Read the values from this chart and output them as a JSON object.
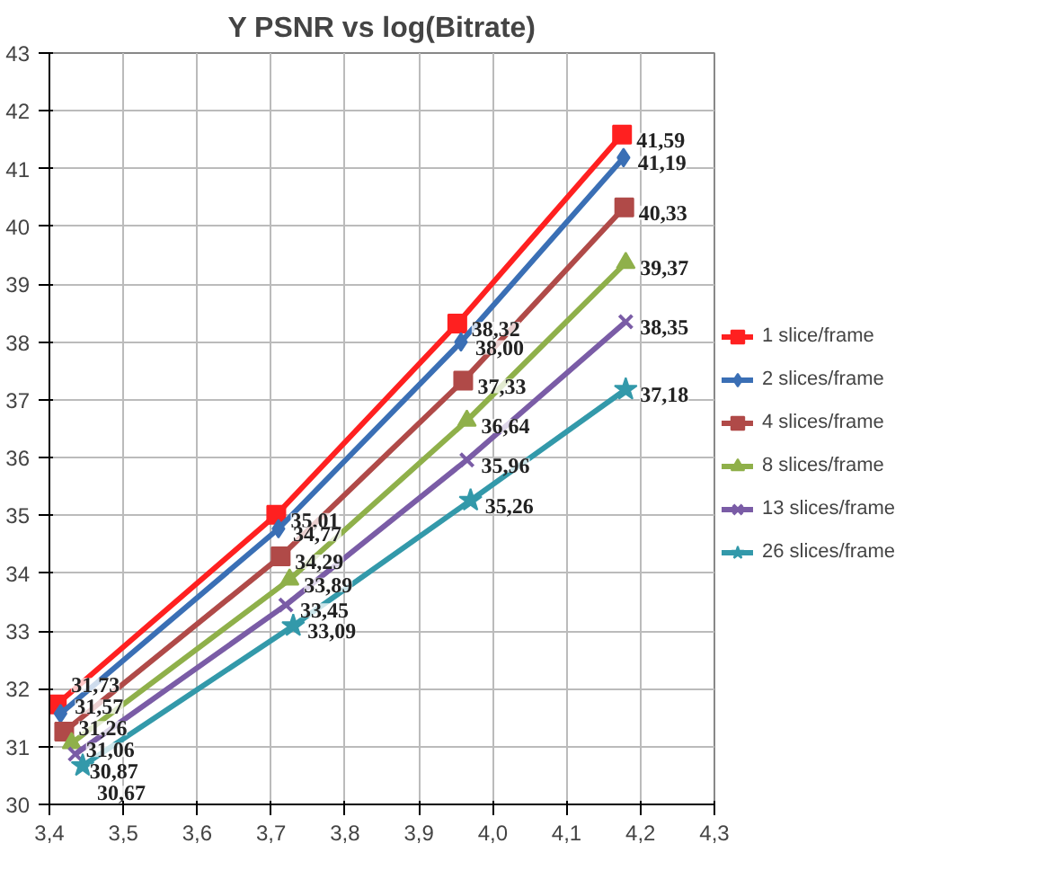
{
  "chart_data": {
    "type": "line",
    "title": "Y PSNR vs log(Bitrate)",
    "xlim": [
      3.4,
      4.3
    ],
    "xticks": [
      {
        "value": 3.4,
        "label": "3,4"
      },
      {
        "value": 3.5,
        "label": "3,5"
      },
      {
        "value": 3.6,
        "label": "3,6"
      },
      {
        "value": 3.7,
        "label": "3,7"
      },
      {
        "value": 3.8,
        "label": "3,8"
      },
      {
        "value": 3.9,
        "label": "3,9"
      },
      {
        "value": 4.0,
        "label": "4,0"
      },
      {
        "value": 4.1,
        "label": "4,1"
      },
      {
        "value": 4.2,
        "label": "4,2"
      },
      {
        "value": 4.3,
        "label": "4,3"
      }
    ],
    "ylim": [
      30,
      43
    ],
    "yticks": [
      30,
      31,
      32,
      33,
      34,
      35,
      36,
      37,
      38,
      39,
      40,
      41,
      42,
      43
    ],
    "grid": true,
    "legend": "right",
    "data_labels": true,
    "line_style": "solid",
    "series": [
      {
        "name": "1 slice/frame",
        "color": "#ff2020",
        "marker": "square",
        "x": [
          3.41,
          3.707,
          3.952,
          4.175
        ],
        "values": [
          31.73,
          35.01,
          38.32,
          41.59
        ],
        "value_labels": [
          "31,73",
          "35,01",
          "38,32",
          "41,59"
        ]
      },
      {
        "name": "2 slices/frame",
        "color": "#3a6fb5",
        "marker": "diamond",
        "x": [
          3.415,
          3.71,
          3.957,
          4.177
        ],
        "values": [
          31.57,
          34.77,
          38.0,
          41.19
        ],
        "value_labels": [
          "31,57",
          "34,77",
          "38,00",
          "41,19"
        ]
      },
      {
        "name": "4 slices/frame",
        "color": "#b04a48",
        "marker": "square",
        "x": [
          3.42,
          3.713,
          3.96,
          4.178
        ],
        "values": [
          31.26,
          34.29,
          37.33,
          40.33
        ],
        "value_labels": [
          "31,26",
          "34,29",
          "37,33",
          "40,33"
        ]
      },
      {
        "name": "8 slices/frame",
        "color": "#8fb04a",
        "marker": "triangle",
        "x": [
          3.43,
          3.725,
          3.965,
          4.18
        ],
        "values": [
          31.06,
          33.89,
          36.64,
          39.37
        ],
        "value_labels": [
          "31,06",
          "33,89",
          "36,64",
          "39,37"
        ]
      },
      {
        "name": "13 slices/frame",
        "color": "#7a5ca6",
        "marker": "cross",
        "x": [
          3.435,
          3.72,
          3.965,
          4.18
        ],
        "values": [
          30.87,
          33.45,
          35.96,
          38.35
        ],
        "value_labels": [
          "30,87",
          "33,45",
          "35,96",
          "38,35"
        ]
      },
      {
        "name": "26 slices/frame",
        "color": "#3399aa",
        "marker": "star",
        "x": [
          3.445,
          3.73,
          3.97,
          4.18
        ],
        "values": [
          30.67,
          33.09,
          35.26,
          37.18
        ],
        "value_labels": [
          "30,67",
          "33,09",
          "35,26",
          "37,18"
        ]
      }
    ]
  }
}
